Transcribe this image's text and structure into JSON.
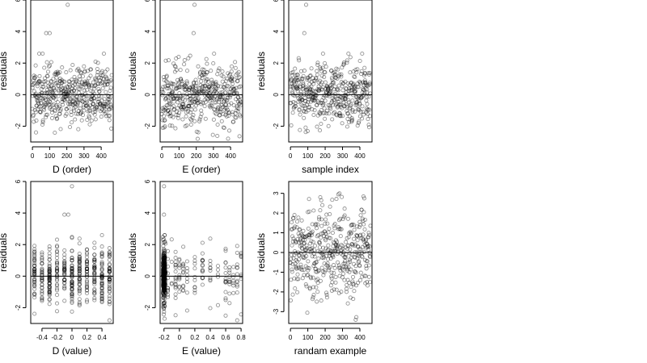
{
  "chart_data": [
    {
      "type": "scatter",
      "xlabel": "D (order)",
      "ylabel": "residuals",
      "xlim": [
        -10,
        470
      ],
      "ylim": [
        -3,
        6
      ],
      "xticks": [
        0,
        100,
        200,
        300,
        400
      ],
      "yticks": [
        -2,
        0,
        2,
        4,
        6
      ],
      "reference_line_y": 0,
      "n_points": 460,
      "outliers": [
        {
          "x": 80,
          "y": 3.9
        },
        {
          "x": 100,
          "y": 3.9
        },
        {
          "x": 205,
          "y": 5.7
        }
      ],
      "series": [
        {
          "points_seed": 11
        }
      ]
    },
    {
      "type": "scatter",
      "xlabel": "E (order)",
      "ylabel": "residuals",
      "xlim": [
        -10,
        470
      ],
      "ylim": [
        -3,
        6
      ],
      "xticks": [
        0,
        100,
        200,
        300,
        400
      ],
      "yticks": [
        -2,
        0,
        2,
        4,
        6
      ],
      "reference_line_y": 0,
      "n_points": 460,
      "outliers": [
        {
          "x": 185,
          "y": 3.9
        },
        {
          "x": 190,
          "y": 5.7
        }
      ],
      "series": [
        {
          "points_seed": 23
        }
      ]
    },
    {
      "type": "scatter",
      "xlabel": "sample index",
      "ylabel": "residuals",
      "xlim": [
        -10,
        470
      ],
      "ylim": [
        -3,
        6
      ],
      "xticks": [
        0,
        100,
        200,
        300,
        400
      ],
      "yticks": [
        -2,
        0,
        2,
        4,
        6
      ],
      "reference_line_y": 0,
      "n_points": 460,
      "outliers": [
        {
          "x": 80,
          "y": 3.9
        },
        {
          "x": 90,
          "y": 5.7
        }
      ],
      "series": [
        {
          "points_seed": 37
        }
      ]
    },
    {
      "type": "scatter",
      "xlabel": "D (value)",
      "ylabel": "residuals",
      "xlim": [
        -0.55,
        0.55
      ],
      "ylim": [
        -3,
        6
      ],
      "xticks": [
        -0.4,
        -0.2,
        0.0,
        0.2,
        0.4
      ],
      "yticks": [
        -2,
        0,
        2,
        4,
        6
      ],
      "reference_line_y": 0,
      "n_points": 460,
      "x_levels": [
        -0.5,
        -0.4,
        -0.3,
        -0.2,
        -0.1,
        0.0,
        0.1,
        0.2,
        0.3,
        0.4,
        0.5
      ],
      "outliers": [
        {
          "x": -0.1,
          "y": 3.9
        },
        {
          "x": -0.05,
          "y": 3.9
        },
        {
          "x": 0.0,
          "y": 5.7
        }
      ],
      "series": [
        {
          "points_seed": 41
        }
      ]
    },
    {
      "type": "scatter",
      "xlabel": "E (value)",
      "ylabel": "residuals",
      "xlim": [
        -0.25,
        0.82
      ],
      "ylim": [
        -3,
        6
      ],
      "xticks": [
        -0.2,
        0.0,
        0.2,
        0.4,
        0.6,
        0.8
      ],
      "yticks": [
        -2,
        0,
        2,
        4,
        6
      ],
      "reference_line_y": 0,
      "n_points": 460,
      "x_levels": [
        -0.2,
        -0.18,
        -0.15,
        -0.1,
        -0.05,
        0.0,
        0.05,
        0.1,
        0.2,
        0.3,
        0.4,
        0.5,
        0.6,
        0.65,
        0.7,
        0.75,
        0.8
      ],
      "outliers": [
        {
          "x": -0.2,
          "y": 3.9
        },
        {
          "x": -0.2,
          "y": 5.7
        }
      ],
      "series": [
        {
          "points_seed": 53
        }
      ]
    },
    {
      "type": "scatter",
      "xlabel": "randam example",
      "ylabel": "residuals",
      "xlim": [
        -10,
        470
      ],
      "ylim": [
        -3.6,
        3.6
      ],
      "xticks": [
        0,
        100,
        200,
        300,
        400
      ],
      "yticks": [
        -3,
        -2,
        -1,
        0,
        1,
        2,
        3
      ],
      "reference_line_y": 0,
      "n_points": 460,
      "outliers": [],
      "series": [
        {
          "points_seed": 67
        }
      ]
    }
  ]
}
